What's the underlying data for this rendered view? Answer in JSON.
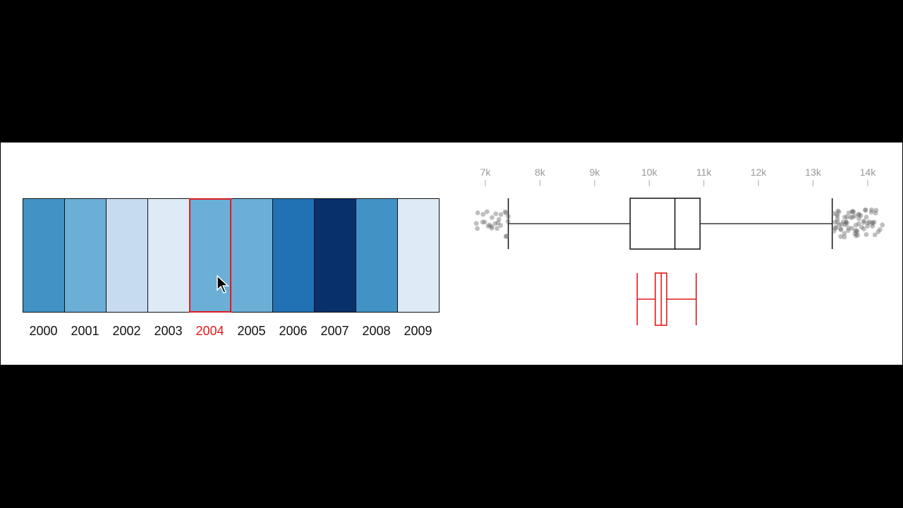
{
  "chart_data": [
    {
      "type": "heatmap",
      "categories": [
        "2000",
        "2001",
        "2002",
        "2003",
        "2004",
        "2005",
        "2006",
        "2007",
        "2008",
        "2009"
      ],
      "colors": [
        "#4292c6",
        "#6baed6",
        "#c6dbef",
        "#deebf7",
        "#6baed6",
        "#6baed6",
        "#2171b5",
        "#08306b",
        "#4292c6",
        "#deebf7"
      ],
      "selected": "2004",
      "selected_color": "#e31a1c"
    },
    {
      "type": "boxplot",
      "tick_labels": [
        "7k",
        "8k",
        "9k",
        "10k",
        "11k",
        "12k",
        "13k",
        "14k"
      ],
      "tick_values": [
        7000,
        8000,
        9000,
        10000,
        11000,
        12000,
        13000,
        14000
      ],
      "overall": {
        "whisker_low": 7420,
        "q1": 9650,
        "median": 10470,
        "q3": 10930,
        "whisker_high": 13350
      },
      "selected": {
        "whisker_low": 9780,
        "q1": 10110,
        "median": 10220,
        "q3": 10320,
        "whisker_high": 10860
      },
      "outliers_low": [
        6830,
        6880,
        6950,
        7000,
        7060,
        7100,
        7150,
        7200,
        7240,
        7280,
        7320,
        7350,
        7380,
        7400,
        7410,
        6870,
        6920,
        7010,
        7090,
        7170,
        7260,
        7330,
        7390,
        7250,
        7120
      ],
      "outliers_high": [
        13370,
        13400,
        13430,
        13460,
        13490,
        13520,
        13550,
        13580,
        13610,
        13640,
        13670,
        13700,
        13730,
        13760,
        13790,
        13820,
        13850,
        13880,
        13910,
        13940,
        13970,
        14000,
        14030,
        14060,
        14090,
        14120,
        14150,
        14180,
        14210,
        13380,
        13420,
        13470,
        13510,
        13560,
        13600,
        13650,
        13690,
        13740,
        13780,
        13830,
        13870,
        13920,
        13960,
        14010,
        14050,
        14100,
        13410,
        13500,
        13590,
        13680,
        13770,
        13860,
        13950,
        14040,
        13440,
        13530,
        13620,
        13710,
        13800,
        13890,
        13980,
        14070,
        14160,
        14230,
        13390,
        13480,
        13570,
        13660,
        13750,
        13840
      ],
      "box_color": "#111111",
      "outlier_color": "#666666"
    }
  ]
}
